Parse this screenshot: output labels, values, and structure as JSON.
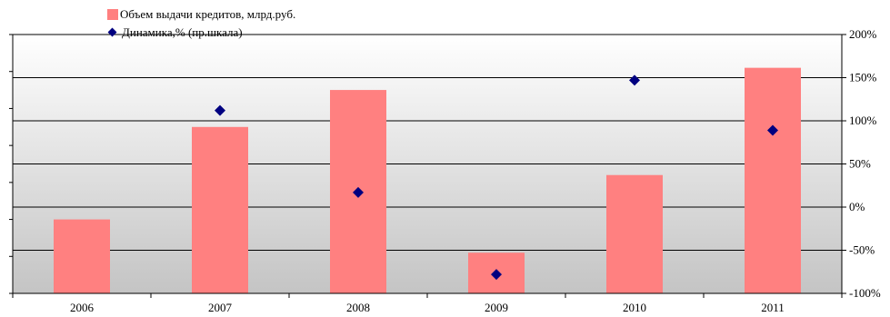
{
  "chart_data": {
    "type": "bar",
    "categories": [
      "2006",
      "2007",
      "2008",
      "2009",
      "2010",
      "2011"
    ],
    "series": [
      {
        "name": "Объем выдачи кредитов, млрд.руб.",
        "type": "bar",
        "axis": "left",
        "color": "#ff8080",
        "values": [
          2.0,
          4.5,
          5.5,
          1.1,
          3.2,
          6.1
        ]
      },
      {
        "name": "Динамика,% (пр.шкала)",
        "type": "scatter",
        "axis": "right",
        "color": "#000080",
        "values": [
          null,
          112,
          17,
          -78,
          147,
          89
        ]
      }
    ],
    "ylim": [
      0,
      7
    ],
    "y2lim": [
      -100,
      200
    ],
    "y2ticks": [
      "-100%",
      "-50%",
      "0%",
      "50%",
      "100%",
      "150%",
      "200%"
    ],
    "grid": true,
    "legend_position": "top-left",
    "plot_background": "gradient white to gray"
  }
}
